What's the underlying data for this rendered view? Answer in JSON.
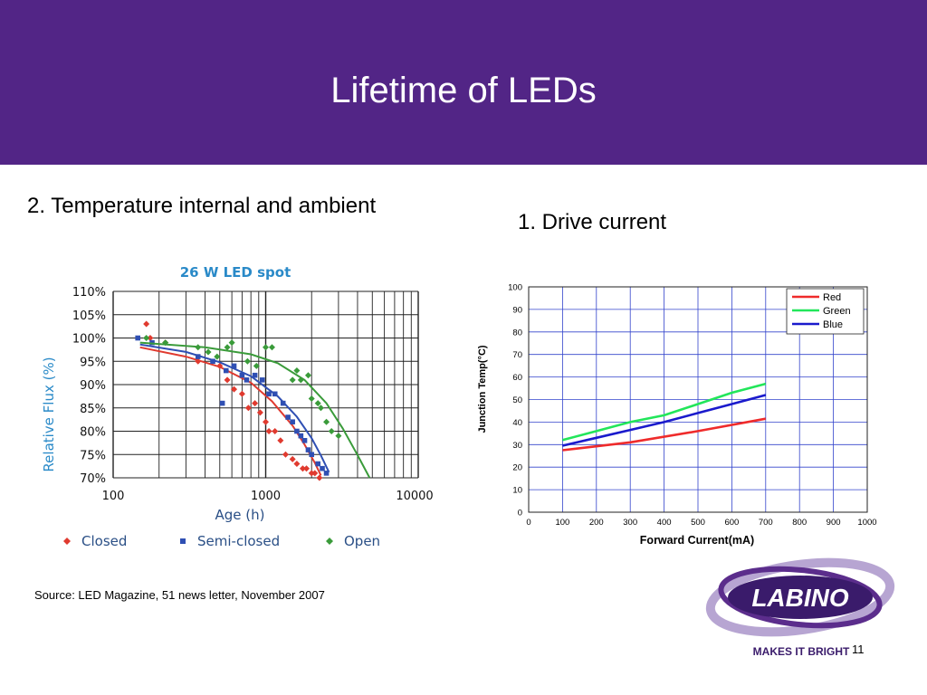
{
  "slide": {
    "title": "Lifetime of LEDs",
    "left_heading": "2. Temperature internal and ambient",
    "right_heading": "1. Drive current",
    "source": "Source: LED Magazine, 51 news letter, November 2007",
    "page_number": "11",
    "logo_text": "LABINO",
    "logo_tagline": "MAKES IT BRIGHT",
    "header_color": "#522586"
  },
  "chart_data": [
    {
      "type": "scatter",
      "title": "26 W LED spot",
      "xlabel": "Age (h)",
      "ylabel": "Relative Flux (%)",
      "x_scale": "log",
      "xlim": [
        100,
        10000
      ],
      "ylim": [
        70,
        110
      ],
      "x_ticks": [
        "100",
        "1000",
        "10000"
      ],
      "y_ticks": [
        "70%",
        "75%",
        "80%",
        "85%",
        "90%",
        "95%",
        "100%",
        "105%",
        "110%"
      ],
      "grid": true,
      "legend_position": "bottom",
      "series": [
        {
          "name": "Closed",
          "color": "#e03a2f",
          "marker": "diamond",
          "points": [
            [
              165,
              103
            ],
            [
              175,
              100
            ],
            [
              220,
              99
            ],
            [
              360,
              95
            ],
            [
              500,
              94
            ],
            [
              560,
              91
            ],
            [
              620,
              89
            ],
            [
              700,
              88
            ],
            [
              770,
              85
            ],
            [
              850,
              86
            ],
            [
              920,
              84
            ],
            [
              1000,
              82
            ],
            [
              1050,
              80
            ],
            [
              1150,
              80
            ],
            [
              1250,
              78
            ],
            [
              1350,
              75
            ],
            [
              1500,
              74
            ],
            [
              1600,
              73
            ],
            [
              1750,
              72
            ],
            [
              1850,
              72
            ],
            [
              2000,
              71
            ],
            [
              2100,
              71
            ],
            [
              2250,
              70
            ]
          ],
          "fit": [
            [
              150,
              98
            ],
            [
              300,
              96
            ],
            [
              500,
              93.8
            ],
            [
              800,
              90.4
            ],
            [
              1100,
              86.4
            ],
            [
              1500,
              81.2
            ],
            [
              1800,
              77.1
            ],
            [
              2100,
              73.2
            ],
            [
              2300,
              70.5
            ]
          ]
        },
        {
          "name": "Semi-closed",
          "color": "#2f4fb3",
          "marker": "square",
          "points": [
            [
              145,
              100
            ],
            [
              180,
              99
            ],
            [
              360,
              96
            ],
            [
              450,
              95
            ],
            [
              550,
              93
            ],
            [
              520,
              86
            ],
            [
              620,
              94
            ],
            [
              700,
              92
            ],
            [
              750,
              91
            ],
            [
              850,
              92
            ],
            [
              950,
              91
            ],
            [
              1050,
              88
            ],
            [
              1150,
              88
            ],
            [
              1300,
              86
            ],
            [
              1400,
              83
            ],
            [
              1500,
              82
            ],
            [
              1600,
              80
            ],
            [
              1700,
              79
            ],
            [
              1800,
              78
            ],
            [
              1900,
              76
            ],
            [
              2000,
              75
            ],
            [
              2200,
              73
            ],
            [
              2350,
              72
            ],
            [
              2500,
              71
            ]
          ],
          "fit": [
            [
              150,
              98.6
            ],
            [
              300,
              97
            ],
            [
              500,
              94.8
            ],
            [
              800,
              91.8
            ],
            [
              1200,
              87.5
            ],
            [
              1600,
              83.1
            ],
            [
              2000,
              78.5
            ],
            [
              2300,
              74.8
            ],
            [
              2600,
              71.2
            ]
          ]
        },
        {
          "name": "Open",
          "color": "#3a9b3a",
          "marker": "diamond",
          "points": [
            [
              165,
              100
            ],
            [
              220,
              99
            ],
            [
              360,
              98
            ],
            [
              420,
              97
            ],
            [
              480,
              96
            ],
            [
              560,
              98
            ],
            [
              600,
              99
            ],
            [
              760,
              95
            ],
            [
              870,
              94
            ],
            [
              1000,
              98
            ],
            [
              1100,
              98
            ],
            [
              1500,
              91
            ],
            [
              1600,
              93
            ],
            [
              1700,
              91
            ],
            [
              1900,
              92
            ],
            [
              2000,
              87
            ],
            [
              2200,
              86
            ],
            [
              2300,
              85
            ],
            [
              2500,
              82
            ],
            [
              2700,
              80
            ],
            [
              3000,
              79
            ]
          ],
          "fit": [
            [
              150,
              99
            ],
            [
              400,
              98
            ],
            [
              800,
              96.5
            ],
            [
              1200,
              94.6
            ],
            [
              1800,
              91
            ],
            [
              2500,
              86
            ],
            [
              3200,
              80.6
            ],
            [
              4000,
              74.9
            ],
            [
              4800,
              70
            ]
          ]
        }
      ]
    },
    {
      "type": "line",
      "title": "",
      "xlabel": "Forward Current(mA)",
      "ylabel": "Junction Temp(°C)",
      "xlim": [
        0,
        1000
      ],
      "ylim": [
        0,
        100
      ],
      "x_ticks": [
        0,
        100,
        200,
        300,
        400,
        500,
        600,
        700,
        800,
        900,
        1000
      ],
      "y_ticks": [
        0,
        10,
        20,
        30,
        40,
        50,
        60,
        70,
        80,
        90,
        100
      ],
      "grid": true,
      "legend_position": "top-right",
      "series": [
        {
          "name": "Red",
          "color": "#ef2b2b",
          "x": [
            100,
            300,
            500,
            700
          ],
          "values": [
            27.5,
            31,
            36,
            41.5
          ]
        },
        {
          "name": "Green",
          "color": "#22e65a",
          "x": [
            100,
            200,
            300,
            400,
            500,
            600,
            700
          ],
          "values": [
            32,
            36,
            40,
            43,
            48,
            53,
            57
          ]
        },
        {
          "name": "Blue",
          "color": "#1a1acc",
          "x": [
            100,
            200,
            300,
            400,
            500,
            600,
            700
          ],
          "values": [
            29.5,
            33,
            36.5,
            40,
            44,
            48,
            52
          ]
        }
      ]
    }
  ]
}
